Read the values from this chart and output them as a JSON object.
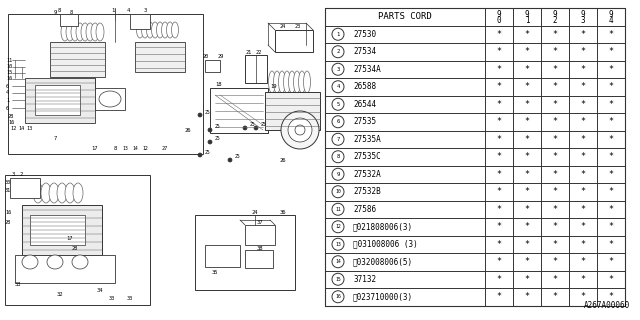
{
  "title": "A267A00060",
  "bg_color": "#ffffff",
  "table_header": "PARTS CORD",
  "col_years": [
    "9\n0",
    "9\n1",
    "9\n2",
    "9\n3",
    "9\n4"
  ],
  "rows": [
    {
      "num": "1",
      "part": "27530"
    },
    {
      "num": "2",
      "part": "27534"
    },
    {
      "num": "3",
      "part": "27534A"
    },
    {
      "num": "4",
      "part": "26588"
    },
    {
      "num": "5",
      "part": "26544"
    },
    {
      "num": "6",
      "part": "27535"
    },
    {
      "num": "7",
      "part": "27535A"
    },
    {
      "num": "8",
      "part": "27535C"
    },
    {
      "num": "9",
      "part": "27532A"
    },
    {
      "num": "10",
      "part": "27532B"
    },
    {
      "num": "11",
      "part": "27586"
    },
    {
      "num": "12",
      "part": "ⓝ021808006(3)"
    },
    {
      "num": "13",
      "part": "Ⓦ031008006 (3)"
    },
    {
      "num": "14",
      "part": "Ⓦ032008006(5)"
    },
    {
      "num": "15",
      "part": "37132"
    },
    {
      "num": "16",
      "part": "ⓝ023710000(3)"
    }
  ],
  "star": "*",
  "diag_color": "#333333",
  "light_gray": "#aaaaaa",
  "mid_gray": "#666666"
}
